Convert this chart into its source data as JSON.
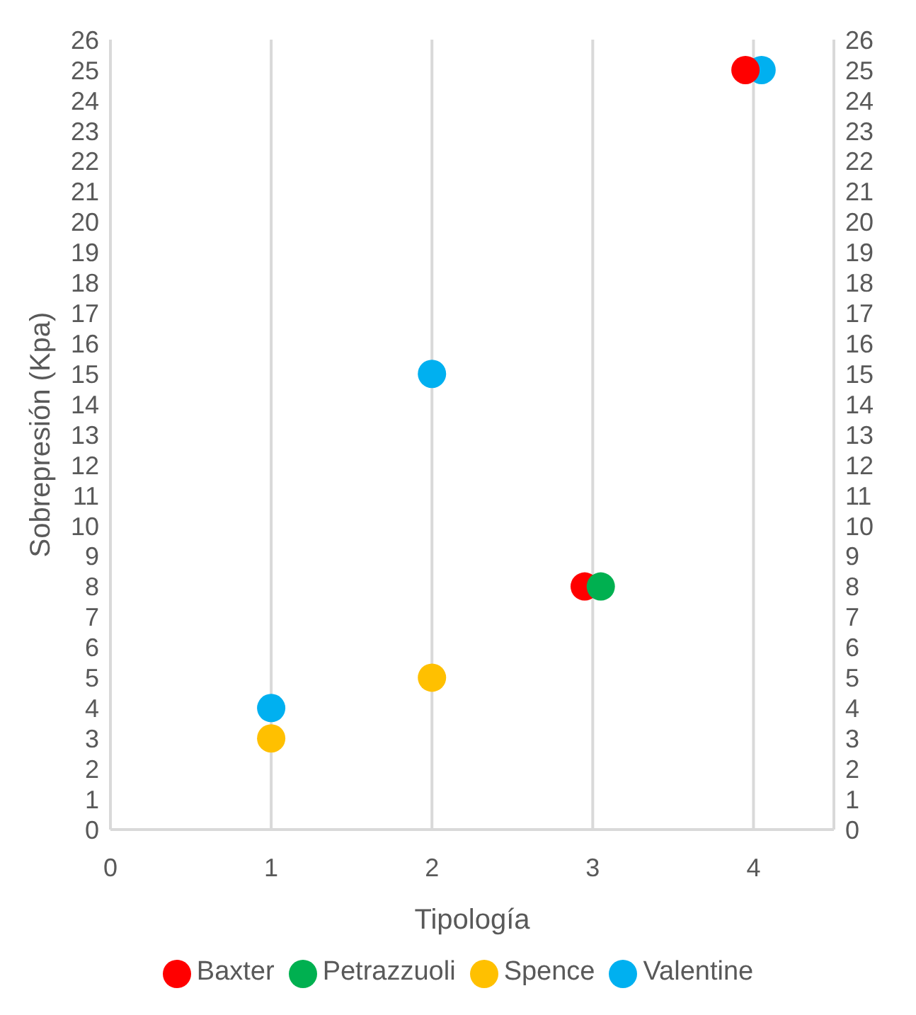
{
  "chart_data": {
    "type": "scatter",
    "xlabel": "Tipología",
    "ylabel": "Sobrepresión (Kpa)",
    "xlim": [
      0,
      4.5
    ],
    "xticks": [
      0,
      1,
      2,
      3,
      4
    ],
    "ylim": [
      0,
      26
    ],
    "yticks": [
      0,
      1,
      2,
      3,
      4,
      5,
      6,
      7,
      8,
      9,
      10,
      11,
      12,
      13,
      14,
      15,
      16,
      17,
      18,
      19,
      20,
      21,
      22,
      23,
      24,
      25,
      26
    ],
    "y2lim": [
      0,
      26
    ],
    "y2ticks": [
      0,
      1,
      2,
      3,
      4,
      5,
      6,
      7,
      8,
      9,
      10,
      11,
      12,
      13,
      14,
      15,
      16,
      17,
      18,
      19,
      20,
      21,
      22,
      23,
      24,
      25,
      26
    ],
    "grid": "x",
    "legend": "bottom",
    "marker": "circle",
    "series": [
      {
        "name": "Spence",
        "color": "#ffc000",
        "x": [
          1,
          2
        ],
        "values": [
          3,
          5
        ]
      },
      {
        "name": "Valentine",
        "color": "#00b0f0",
        "x": [
          1,
          2,
          4.05
        ],
        "values": [
          4,
          15,
          25
        ]
      },
      {
        "name": "Baxter",
        "color": "#ff0000",
        "x": [
          2.95,
          3.95
        ],
        "values": [
          8,
          25
        ]
      },
      {
        "name": "Petrazzuoli",
        "color": "#00b050",
        "x": [
          3.05
        ],
        "values": [
          8
        ]
      }
    ]
  }
}
